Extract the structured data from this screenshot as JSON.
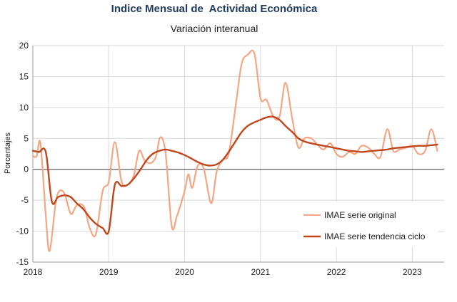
{
  "colors": {
    "original": "#f4a683",
    "tendencia": "#c1461c",
    "grid": "#d9d9d9",
    "zero": "#606060"
  },
  "chart_data": {
    "type": "line",
    "title": "Indice Mensual de  Actividad Económica",
    "subtitle": "Variación interanual",
    "ylabel": "Porcentajes",
    "xlabel": "",
    "ylim": [
      -15,
      20
    ],
    "yticks": [
      -15,
      -10,
      -5,
      0,
      5,
      10,
      15,
      20
    ],
    "xlim": [
      2018,
      2023.42
    ],
    "xticks": [
      2018,
      2019,
      2020,
      2021,
      2022,
      2023
    ],
    "xtick_labels": [
      "2018",
      "2019",
      "2020",
      "2021",
      "2022",
      "2023"
    ],
    "ytick_labels": [
      "-15",
      "-10",
      "-5",
      "0",
      "5",
      "10",
      "15",
      "20"
    ],
    "grid": true,
    "legend_position": "lower-right",
    "series": [
      {
        "name": "IMAE serie original",
        "key": "original",
        "x": [
          2018.0,
          2018.05,
          2018.1,
          2018.17,
          2018.22,
          2018.3,
          2018.35,
          2018.42,
          2018.5,
          2018.58,
          2018.67,
          2018.75,
          2018.83,
          2018.92,
          2019.0,
          2019.08,
          2019.17,
          2019.25,
          2019.33,
          2019.4,
          2019.47,
          2019.55,
          2019.62,
          2019.68,
          2019.75,
          2019.83,
          2019.9,
          2020.0,
          2020.05,
          2020.1,
          2020.17,
          2020.25,
          2020.35,
          2020.42,
          2020.5,
          2020.58,
          2020.67,
          2020.75,
          2020.83,
          2020.92,
          2021.0,
          2021.08,
          2021.17,
          2021.25,
          2021.33,
          2021.42,
          2021.5,
          2021.58,
          2021.67,
          2021.75,
          2021.83,
          2021.92,
          2022.0,
          2022.08,
          2022.17,
          2022.25,
          2022.33,
          2022.42,
          2022.5,
          2022.58,
          2022.67,
          2022.75,
          2022.83,
          2022.92,
          2023.0,
          2023.08,
          2023.17,
          2023.25,
          2023.33
        ],
        "y": [
          2.2,
          2.1,
          4.2,
          -7.5,
          -13.2,
          -5.5,
          -3.5,
          -4.0,
          -7.2,
          -5.8,
          -6.0,
          -9.5,
          -10.5,
          -3.5,
          -2.0,
          4.4,
          -2.0,
          -2.5,
          -1.0,
          3.0,
          1.5,
          1.0,
          2.0,
          5.2,
          2.5,
          -9.2,
          -7.5,
          -3.5,
          -0.8,
          -3.0,
          0.5,
          0.2,
          -5.5,
          -0.5,
          1.5,
          2.5,
          10.0,
          17.0,
          18.5,
          18.7,
          11.5,
          11.2,
          8.5,
          8.5,
          14.0,
          8.0,
          3.5,
          5.0,
          5.0,
          4.0,
          3.2,
          4.2,
          2.5,
          2.0,
          2.8,
          2.5,
          3.8,
          3.5,
          2.5,
          2.0,
          6.5,
          3.0,
          3.2,
          3.5,
          3.8,
          2.5,
          3.0,
          6.5,
          3.0
        ]
      },
      {
        "name": "IMAE serie  tendencia ciclo",
        "key": "tendencia",
        "x": [
          2018.0,
          2018.08,
          2018.17,
          2018.25,
          2018.33,
          2018.42,
          2018.5,
          2018.58,
          2018.67,
          2018.75,
          2018.83,
          2018.92,
          2019.0,
          2019.08,
          2019.17,
          2019.25,
          2019.33,
          2019.42,
          2019.5,
          2019.58,
          2019.67,
          2019.75,
          2019.83,
          2019.92,
          2020.0,
          2020.08,
          2020.17,
          2020.25,
          2020.33,
          2020.42,
          2020.5,
          2020.58,
          2020.67,
          2020.75,
          2020.83,
          2020.92,
          2021.0,
          2021.08,
          2021.17,
          2021.25,
          2021.33,
          2021.42,
          2021.5,
          2021.58,
          2021.67,
          2021.75,
          2021.83,
          2021.92,
          2022.0,
          2022.08,
          2022.17,
          2022.25,
          2022.33,
          2022.42,
          2022.5,
          2022.58,
          2022.67,
          2022.75,
          2022.83,
          2022.92,
          2023.0,
          2023.08,
          2023.17,
          2023.25,
          2023.33
        ],
        "y": [
          3.0,
          2.8,
          2.8,
          -5.2,
          -4.5,
          -4.2,
          -4.5,
          -5.5,
          -6.5,
          -7.8,
          -8.8,
          -9.5,
          -10.0,
          -2.5,
          -2.7,
          -2.5,
          -1.5,
          0.0,
          1.5,
          2.5,
          3.0,
          3.2,
          3.0,
          2.7,
          2.3,
          1.8,
          1.2,
          0.8,
          0.6,
          0.8,
          1.5,
          2.8,
          4.5,
          6.0,
          7.0,
          7.6,
          8.0,
          8.4,
          8.5,
          8.0,
          7.0,
          6.0,
          5.0,
          4.5,
          4.2,
          4.0,
          3.8,
          3.6,
          3.4,
          3.2,
          3.0,
          2.9,
          2.8,
          2.9,
          3.0,
          3.1,
          3.2,
          3.4,
          3.5,
          3.6,
          3.7,
          3.8,
          3.8,
          3.9,
          4.0
        ]
      }
    ]
  }
}
